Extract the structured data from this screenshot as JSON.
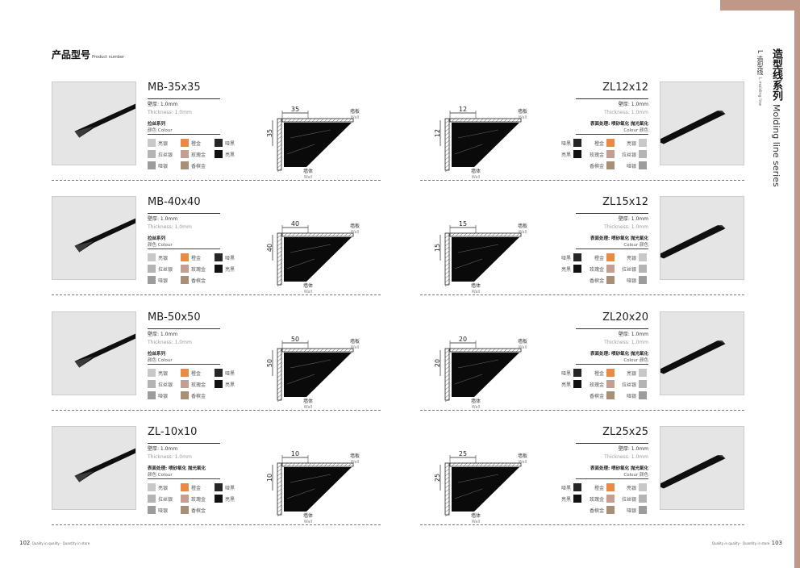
{
  "header": {
    "title_cn": "产品型号",
    "title_en": "Product number"
  },
  "side": {
    "title_cn": "造型线系列",
    "title_en": "Molding line series",
    "sub_cn": "L 造型线",
    "sub_en": "L molding line"
  },
  "footer": {
    "left_page": "102",
    "left_tag": "Quality in quality · Quantity in store",
    "right_tag": "Quality in quality · Quantity in store",
    "right_page": "103"
  },
  "colors": {
    "accent": "#c09887",
    "swatches": {
      "bright_silver": "#c8c8c8",
      "champagne_gold": "#e98a45",
      "matte_black": "#262626",
      "brushed_silver": "#b4b4b4",
      "rose_gold": "#c29e93",
      "glossy_black": "#111111",
      "matte_silver": "#9c9c9c",
      "champagne": "#a98f76"
    }
  },
  "diagram_labels": {
    "board_cn": "墙板",
    "board_en": "Wall",
    "wall_cn": "墙体",
    "wall_en": "Wall"
  },
  "left_products": [
    {
      "model": "MB-35x35",
      "size": "35",
      "thickness_cn": "壁厚: 1.0mm",
      "thickness_en": "Thickness: 1.0mm",
      "finish": "拉丝系列",
      "colour_label": "颜色 Colour",
      "swatches": [
        [
          "亮银",
          "bright_silver"
        ],
        [
          "橙金",
          "champagne_gold"
        ],
        [
          "哑黑",
          "matte_black"
        ],
        [
          "拉丝银",
          "brushed_silver"
        ],
        [
          "玫瑰金",
          "rose_gold"
        ],
        [
          "亮黑",
          "glossy_black"
        ],
        [
          "哑银",
          "matte_silver"
        ],
        [
          "香槟金",
          "champagne"
        ]
      ]
    },
    {
      "model": "MB-40x40",
      "size": "40",
      "thickness_cn": "壁厚: 1.0mm",
      "thickness_en": "Thickness: 1.0mm",
      "finish": "拉丝系列",
      "colour_label": "颜色 Colour",
      "swatches": [
        [
          "亮银",
          "bright_silver"
        ],
        [
          "橙金",
          "champagne_gold"
        ],
        [
          "哑黑",
          "matte_black"
        ],
        [
          "拉丝银",
          "brushed_silver"
        ],
        [
          "玫瑰金",
          "rose_gold"
        ],
        [
          "亮黑",
          "glossy_black"
        ],
        [
          "哑银",
          "matte_silver"
        ],
        [
          "香槟金",
          "champagne"
        ]
      ]
    },
    {
      "model": "MB-50x50",
      "size": "50",
      "thickness_cn": "壁厚: 1.0mm",
      "thickness_en": "Thickness: 1.0mm",
      "finish": "拉丝系列",
      "colour_label": "颜色 Colour",
      "swatches": [
        [
          "亮银",
          "bright_silver"
        ],
        [
          "橙金",
          "champagne_gold"
        ],
        [
          "哑黑",
          "matte_black"
        ],
        [
          "拉丝银",
          "brushed_silver"
        ],
        [
          "玫瑰金",
          "rose_gold"
        ],
        [
          "亮黑",
          "glossy_black"
        ],
        [
          "哑银",
          "matte_silver"
        ],
        [
          "香槟金",
          "champagne"
        ]
      ]
    },
    {
      "model": "ZL-10x10",
      "size": "10",
      "thickness_cn": "壁厚: 1.0mm",
      "thickness_en": "Thickness: 1.0mm",
      "finish": "表面处理: 喷砂氧化 抛光氧化",
      "colour_label": "颜色 Colour",
      "swatches": [
        [
          "亮银",
          "bright_silver"
        ],
        [
          "橙金",
          "champagne_gold"
        ],
        [
          "哑黑",
          "matte_black"
        ],
        [
          "拉丝银",
          "brushed_silver"
        ],
        [
          "玫瑰金",
          "rose_gold"
        ],
        [
          "亮黑",
          "glossy_black"
        ],
        [
          "哑银",
          "matte_silver"
        ],
        [
          "香槟金",
          "champagne"
        ]
      ]
    }
  ],
  "right_products": [
    {
      "model": "ZL12x12",
      "size": "12",
      "thickness_cn": "壁厚: 1.0mm",
      "thickness_en": "Thickness: 1.0mm",
      "finish": "表面处理: 喷砂氧化 抛光氧化",
      "colour_label": "Colour 颜色",
      "swatches": [
        [
          "哑黑",
          "matte_black"
        ],
        [
          "橙金",
          "champagne_gold"
        ],
        [
          "亮银",
          "bright_silver"
        ],
        [
          "亮黑",
          "glossy_black"
        ],
        [
          "玫瑰金",
          "rose_gold"
        ],
        [
          "拉丝银",
          "brushed_silver"
        ],
        [
          "香槟金",
          "champagne"
        ],
        [
          "哑银",
          "matte_silver"
        ]
      ]
    },
    {
      "model": "ZL15x12",
      "size": "15",
      "thickness_cn": "壁厚: 1.0mm",
      "thickness_en": "Thickness: 1.0mm",
      "finish": "表面处理: 喷砂氧化 抛光氧化",
      "colour_label": "Colour 颜色",
      "swatches": [
        [
          "哑黑",
          "matte_black"
        ],
        [
          "橙金",
          "champagne_gold"
        ],
        [
          "亮银",
          "bright_silver"
        ],
        [
          "亮黑",
          "glossy_black"
        ],
        [
          "玫瑰金",
          "rose_gold"
        ],
        [
          "拉丝银",
          "brushed_silver"
        ],
        [
          "香槟金",
          "champagne"
        ],
        [
          "哑银",
          "matte_silver"
        ]
      ]
    },
    {
      "model": "ZL20x20",
      "size": "20",
      "thickness_cn": "壁厚: 1.0mm",
      "thickness_en": "Thickness: 1.0mm",
      "finish": "表面处理: 喷砂氧化 抛光氧化",
      "colour_label": "Colour 颜色",
      "swatches": [
        [
          "哑黑",
          "matte_black"
        ],
        [
          "橙金",
          "champagne_gold"
        ],
        [
          "亮银",
          "bright_silver"
        ],
        [
          "亮黑",
          "glossy_black"
        ],
        [
          "玫瑰金",
          "rose_gold"
        ],
        [
          "拉丝银",
          "brushed_silver"
        ],
        [
          "香槟金",
          "champagne"
        ],
        [
          "哑银",
          "matte_silver"
        ]
      ]
    },
    {
      "model": "ZL25x25",
      "size": "25",
      "thickness_cn": "壁厚: 1.0mm",
      "thickness_en": "Thickness: 1.0mm",
      "finish": "表面处理: 喷砂氧化 抛光氧化",
      "colour_label": "Colour 颜色",
      "swatches": [
        [
          "哑黑",
          "matte_black"
        ],
        [
          "橙金",
          "champagne_gold"
        ],
        [
          "亮银",
          "bright_silver"
        ],
        [
          "亮黑",
          "glossy_black"
        ],
        [
          "玫瑰金",
          "rose_gold"
        ],
        [
          "拉丝银",
          "brushed_silver"
        ],
        [
          "香槟金",
          "champagne"
        ],
        [
          "哑银",
          "matte_silver"
        ]
      ]
    }
  ]
}
